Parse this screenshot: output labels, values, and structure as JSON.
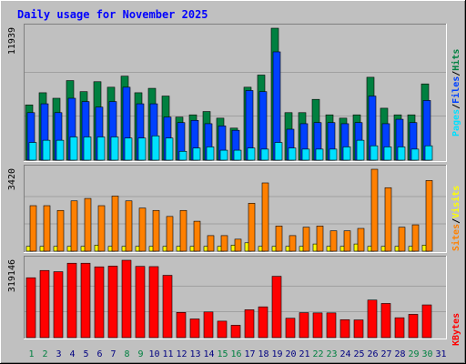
{
  "title": "Daily usage for November 2025",
  "colors": {
    "background": "#c0c0c0",
    "plot_background": "#c0c0c0",
    "title_text": "#0000ff",
    "hits": "#008040",
    "files": "#0040ff",
    "pages": "#00e0ff",
    "visits": "#ffff00",
    "sites": "#ff8000",
    "kbytes": "#ff0000",
    "weekday_label": "#000080",
    "weekend_label": "#008040"
  },
  "chart_data": [
    {
      "type": "bar",
      "panel": "hits-files-pages",
      "ymax_label": "11939",
      "ylim": [
        0,
        11939
      ],
      "legend": [
        "Pages",
        "Files",
        "Hits"
      ],
      "categories": [
        "1",
        "2",
        "3",
        "4",
        "5",
        "6",
        "7",
        "8",
        "9",
        "10",
        "11",
        "12",
        "13",
        "14",
        "15",
        "16",
        "17",
        "18",
        "19",
        "20",
        "21",
        "22",
        "23",
        "24",
        "25",
        "26",
        "27",
        "28",
        "29",
        "30",
        "31"
      ],
      "series": [
        {
          "name": "Hits",
          "values": [
            5000,
            6100,
            5600,
            7200,
            6200,
            7100,
            6600,
            7600,
            6100,
            6500,
            5800,
            3900,
            4100,
            4400,
            3800,
            2900,
            6600,
            7700,
            11939,
            4300,
            4300,
            5500,
            4100,
            3800,
            4100,
            7500,
            4700,
            4100,
            4100,
            6900,
            0
          ]
        },
        {
          "name": "Files",
          "values": [
            4300,
            5100,
            4300,
            5600,
            5300,
            4800,
            5300,
            6600,
            5100,
            5100,
            3900,
            3400,
            3600,
            3300,
            3100,
            2700,
            6300,
            6200,
            9800,
            2800,
            3300,
            3400,
            3400,
            3300,
            3400,
            5800,
            3300,
            3700,
            3400,
            5400,
            0
          ]
        },
        {
          "name": "Pages",
          "values": [
            1600,
            1800,
            1800,
            2100,
            2100,
            2100,
            2100,
            2000,
            2000,
            2200,
            2000,
            800,
            1100,
            1200,
            900,
            900,
            1100,
            1000,
            1600,
            1100,
            1000,
            1000,
            1000,
            1200,
            1800,
            1300,
            1200,
            1200,
            1000,
            1300,
            0
          ]
        }
      ]
    },
    {
      "type": "bar",
      "panel": "visits-sites",
      "ymax_label": "3420",
      "ylim": [
        0,
        3420
      ],
      "legend": [
        "Sites",
        "Visits"
      ],
      "categories": [
        "1",
        "2",
        "3",
        "4",
        "5",
        "6",
        "7",
        "8",
        "9",
        "10",
        "11",
        "12",
        "13",
        "14",
        "15",
        "16",
        "17",
        "18",
        "19",
        "20",
        "21",
        "22",
        "23",
        "24",
        "25",
        "26",
        "27",
        "28",
        "29",
        "30",
        "31"
      ],
      "series": [
        {
          "name": "Visits",
          "values": [
            200,
            200,
            200,
            200,
            200,
            250,
            200,
            200,
            200,
            200,
            200,
            200,
            200,
            200,
            200,
            250,
            350,
            200,
            200,
            200,
            200,
            300,
            200,
            200,
            300,
            200,
            200,
            200,
            200,
            250,
            0
          ]
        },
        {
          "name": "Sites",
          "values": [
            1900,
            1900,
            1700,
            2100,
            2200,
            1900,
            2300,
            2100,
            1800,
            1700,
            1450,
            1700,
            1250,
            650,
            650,
            500,
            2000,
            2850,
            1050,
            650,
            1000,
            1050,
            850,
            850,
            950,
            3420,
            2650,
            1000,
            1100,
            2950,
            0
          ]
        }
      ]
    },
    {
      "type": "bar",
      "panel": "kbytes",
      "ymax_label": "319146",
      "ylim": [
        0,
        319146
      ],
      "legend": [
        "KBytes"
      ],
      "categories": [
        "1",
        "2",
        "3",
        "4",
        "5",
        "6",
        "7",
        "8",
        "9",
        "10",
        "11",
        "12",
        "13",
        "14",
        "15",
        "16",
        "17",
        "18",
        "19",
        "20",
        "21",
        "22",
        "23",
        "24",
        "25",
        "26",
        "27",
        "28",
        "29",
        "30",
        "31"
      ],
      "series": [
        {
          "name": "KBytes",
          "values": [
            247000,
            277000,
            272000,
            307000,
            307000,
            292000,
            295000,
            319146,
            294000,
            293000,
            257000,
            104000,
            77000,
            106000,
            68000,
            51000,
            115000,
            127000,
            253000,
            80000,
            103000,
            102000,
            102000,
            74000,
            73000,
            155000,
            141000,
            82000,
            96000,
            135000,
            0
          ]
        }
      ]
    }
  ]
}
